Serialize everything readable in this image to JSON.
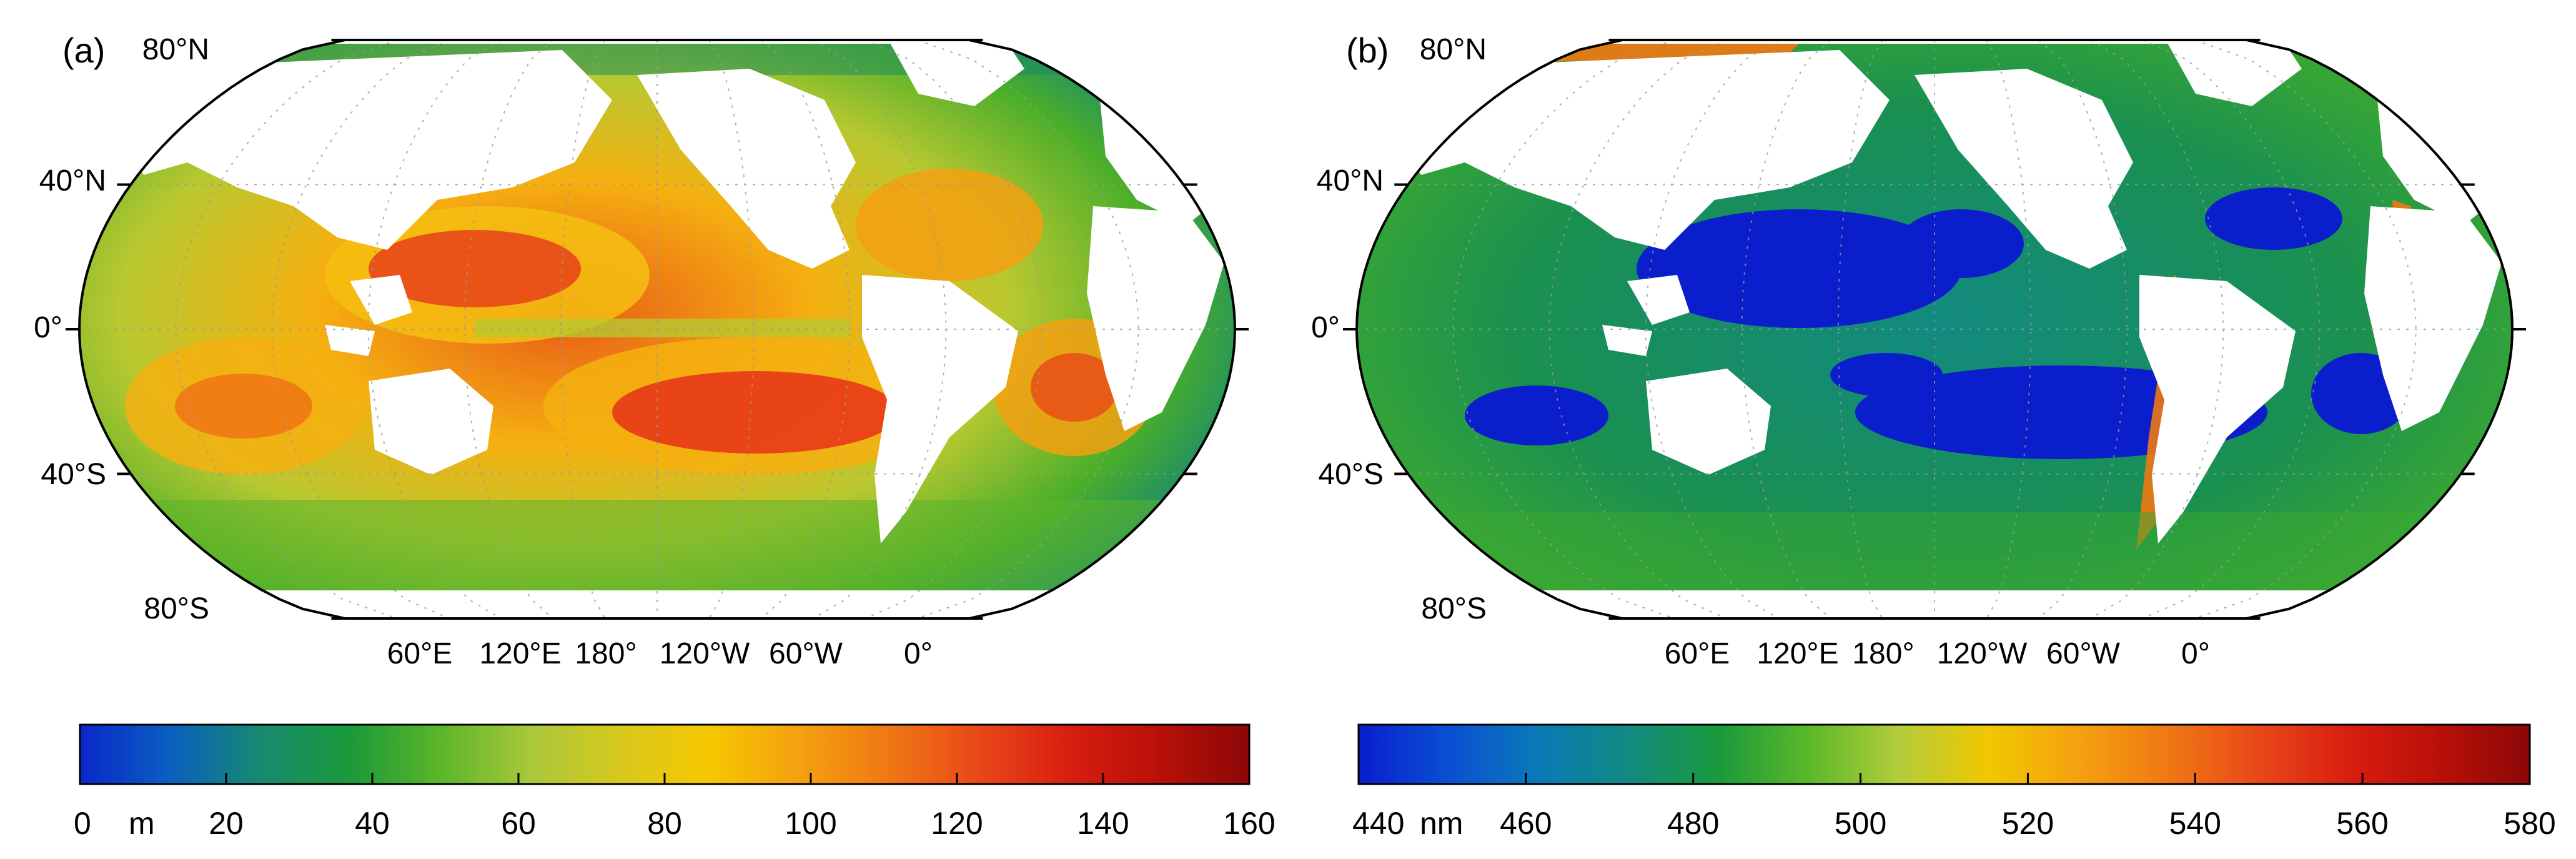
{
  "panels": [
    {
      "letter": "(a)",
      "lat_labels": [
        "80°N",
        "40°N",
        "0°",
        "40°S",
        "80°S"
      ],
      "lon_labels": [
        "60°E",
        "120°E",
        "180°",
        "120°W",
        "60°W",
        "0°"
      ],
      "colorbar": {
        "min": 0,
        "max": 160,
        "ticks": [
          "0",
          "20",
          "40",
          "60",
          "80",
          "100",
          "120",
          "140",
          "160"
        ],
        "unit": "m",
        "colors": [
          "#0a28c8",
          "#0a5fc0",
          "#178a70",
          "#1a9a3a",
          "#5cb52a",
          "#a8c83a",
          "#d8c81e",
          "#f5c800",
          "#f5a010",
          "#f07814",
          "#e84818",
          "#d81e10",
          "#b81008",
          "#8c0808"
        ]
      }
    },
    {
      "letter": "(b)",
      "lat_labels": [
        "80°N",
        "40°N",
        "0°",
        "40°S",
        "80°S"
      ],
      "lon_labels": [
        "60°E",
        "120°E",
        "180°",
        "120°W",
        "60°W",
        "0°"
      ],
      "colorbar": {
        "min": 440,
        "max": 580,
        "ticks": [
          "440",
          "460",
          "480",
          "500",
          "520",
          "540",
          "560",
          "580"
        ],
        "unit": "nm",
        "colors": [
          "#0a1ecc",
          "#0a50d2",
          "#0a7ab8",
          "#128a80",
          "#1a9a3c",
          "#5cb82a",
          "#b4cc3a",
          "#f0c800",
          "#f5a010",
          "#f07814",
          "#e84818",
          "#d81e10",
          "#b81008",
          "#8c0808"
        ]
      }
    }
  ],
  "colors": {
    "land": "#ffffff",
    "outline": "#000000",
    "grid": "#9a9a9a"
  }
}
